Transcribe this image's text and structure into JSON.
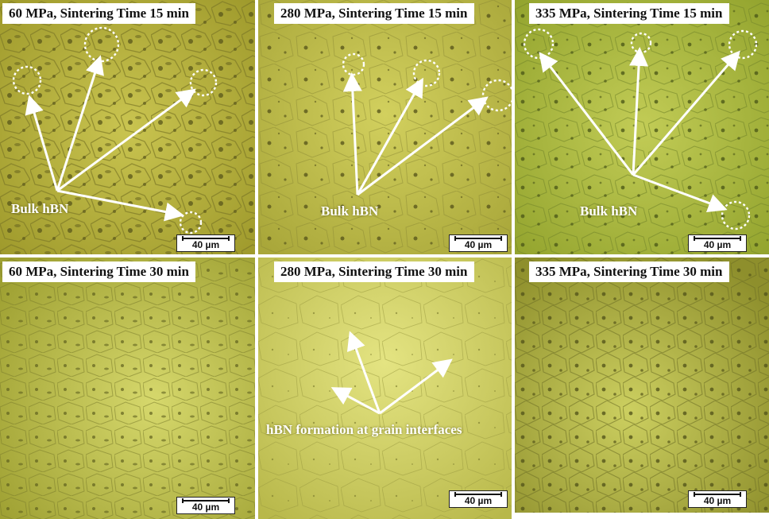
{
  "colors": {
    "panel_a": "#b8b43a",
    "panel_b": "#c4c44c",
    "panel_c": "#a9bb3c",
    "panel_d": "#bcc24a",
    "panel_e": "#d4d46a",
    "panel_f": "#b0b240",
    "grain_dark": "#6f6c22",
    "annotation": "#ffffff"
  },
  "panels": [
    {
      "title": "60 MPa, Sintering Time 15 min",
      "scale": "40 µm"
    },
    {
      "title": "280 MPa, Sintering Time 15 min",
      "scale": "40 µm"
    },
    {
      "title": "335 MPa, Sintering Time 15 min",
      "scale": "40 µm"
    },
    {
      "title": "60 MPa, Sintering Time 30 min",
      "scale": "40 µm"
    },
    {
      "title": "280 MPa, Sintering Time 30 min",
      "scale": "40 µm"
    },
    {
      "title": "335 MPa, Sintering Time 30 min",
      "scale": "40 µm"
    }
  ],
  "annotations": {
    "bulk_hbn": "Bulk hBN",
    "hbn_formation": "hBN formation at grain interfaces"
  }
}
